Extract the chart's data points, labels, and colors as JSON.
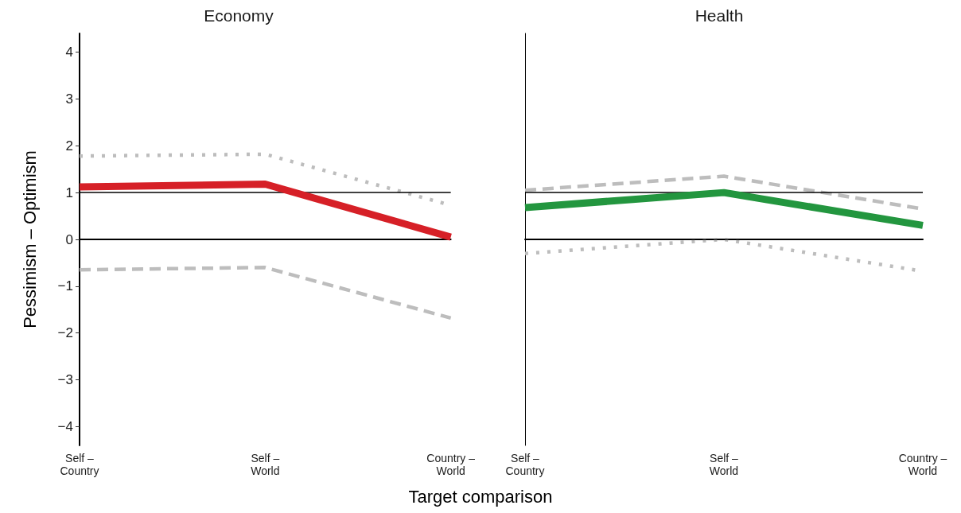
{
  "chart_data": [
    {
      "type": "line",
      "title": "Economy",
      "ylabel": "Pessimism – Optimism",
      "xlabel": "Target comparison",
      "categories": [
        "Self –\nCountry",
        "Self –\nWorld",
        "Country –\nWorld"
      ],
      "series": [
        {
          "color": "#bdbdbd",
          "line_style": "dotted",
          "values": [
            1.78,
            1.82,
            0.73
          ]
        },
        {
          "color": "#bdbdbd",
          "line_style": "dashed",
          "values": [
            -0.65,
            -0.6,
            -1.68
          ]
        },
        {
          "color": "#d62027",
          "line_style": "solid",
          "values": [
            1.12,
            1.18,
            0.05
          ]
        }
      ],
      "ylim": [
        -4.4,
        4.4
      ],
      "yticks": [
        {
          "value": -4,
          "label": "−4"
        },
        {
          "value": -3,
          "label": "−3"
        },
        {
          "value": -2,
          "label": "−2"
        },
        {
          "value": -1,
          "label": "−1"
        },
        0,
        1,
        2,
        3,
        4
      ],
      "ref_lines": [
        {
          "axis": "y",
          "value": 0,
          "color": "#000000"
        },
        {
          "axis": "y",
          "value": 1,
          "color": "#000000"
        }
      ],
      "grid": false,
      "marker": "none"
    },
    {
      "type": "line",
      "title": "Health",
      "categories": [
        "Self –\nCountry",
        "Self –\nWorld",
        "Country –\nWorld"
      ],
      "series": [
        {
          "color": "#bdbdbd",
          "line_style": "dashed",
          "values": [
            1.05,
            1.35,
            0.65
          ]
        },
        {
          "color": "#bdbdbd",
          "line_style": "dotted",
          "values": [
            -0.3,
            0.0,
            -0.68
          ]
        },
        {
          "color": "#23963f",
          "line_style": "solid",
          "values": [
            0.68,
            1.0,
            0.3
          ]
        }
      ],
      "ylim": [
        -4.4,
        4.4
      ],
      "yticks": [
        -4,
        -3,
        -2,
        -1,
        0,
        1,
        2,
        3,
        4
      ],
      "ref_lines": [
        {
          "axis": "y",
          "value": 0,
          "color": "#000000"
        },
        {
          "axis": "y",
          "value": 1,
          "color": "#000000"
        }
      ],
      "marker": "none",
      "tick_labels": "x"
    }
  ]
}
